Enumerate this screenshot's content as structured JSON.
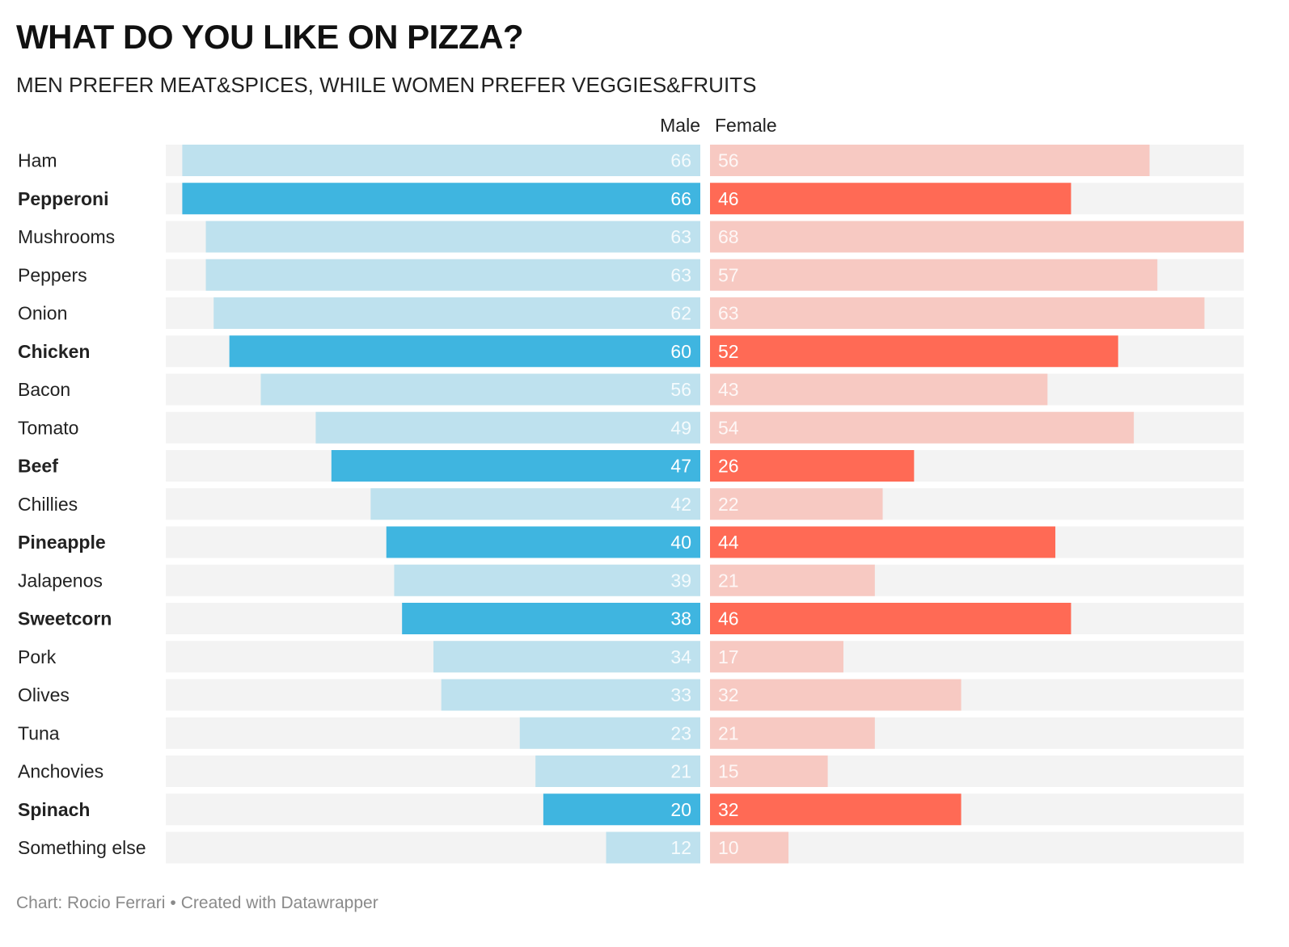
{
  "title": "WHAT DO YOU LIKE ON PIZZA?",
  "subtitle": "MEN PREFER MEAT&SPICES, WHILE WOMEN PREFER VEGGIES&FRUITS",
  "footer": {
    "credit": "Chart: Rocio Ferrari",
    "separator": "•",
    "tool": "Created with Datawrapper"
  },
  "colors": {
    "background_track": "#f3f3f3",
    "male_highlight": "#3fb5e0",
    "male_muted": "#bee1ee",
    "female_highlight": "#ff6a55",
    "female_muted": "#f7c9c2",
    "label_light": "#ffffff"
  },
  "chart_data": {
    "type": "bar",
    "orientation": "diverging-horizontal",
    "max": 68,
    "series": [
      {
        "name": "Male",
        "values": [
          66,
          66,
          63,
          63,
          62,
          60,
          56,
          49,
          47,
          42,
          40,
          39,
          38,
          34,
          33,
          23,
          21,
          20,
          12
        ]
      },
      {
        "name": "Female",
        "values": [
          56,
          46,
          68,
          57,
          63,
          52,
          43,
          54,
          26,
          22,
          44,
          21,
          46,
          17,
          32,
          21,
          15,
          32,
          10
        ]
      }
    ],
    "categories": [
      "Ham",
      "Pepperoni",
      "Mushrooms",
      "Peppers",
      "Onion",
      "Chicken",
      "Bacon",
      "Tomato",
      "Beef",
      "Chillies",
      "Pineapple",
      "Jalapenos",
      "Sweetcorn",
      "Pork",
      "Olives",
      "Tuna",
      "Anchovies",
      "Spinach",
      "Something else"
    ],
    "highlighted": [
      false,
      true,
      false,
      false,
      false,
      true,
      false,
      false,
      true,
      false,
      true,
      false,
      true,
      false,
      false,
      false,
      false,
      true,
      false
    ]
  }
}
